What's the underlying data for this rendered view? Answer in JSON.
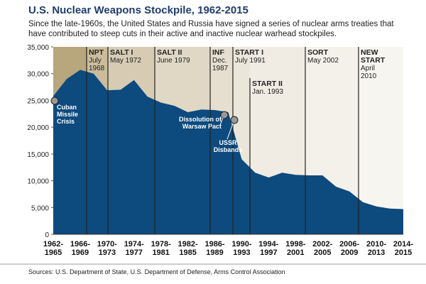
{
  "chart_data": {
    "type": "area",
    "title": "U.S. Nuclear Weapons Stockpile, 1962-2015",
    "subtitle": "Since the late-1960s, the United States and Russia have signed a series of nuclear arms treaties that have contributed to steep cuts in their active and inactive nuclear warhead stockpiles.",
    "categories": [
      "1962-1965",
      null,
      "1966-1969",
      null,
      "1970-1973",
      null,
      "1974-1977",
      null,
      "1978-1981",
      null,
      "1982-1985",
      null,
      "1986-1989",
      null,
      "1990-1993",
      null,
      "1994-1997",
      null,
      "1998-2001",
      null,
      "2002-2005",
      null,
      "2006-2009",
      null,
      "2010-2013",
      null,
      "2014-2015"
    ],
    "values": [
      25800,
      29000,
      30700,
      30000,
      26900,
      27000,
      28800,
      25700,
      24600,
      24000,
      22800,
      23300,
      23200,
      22800,
      14000,
      11500,
      10600,
      11500,
      11100,
      11000,
      11000,
      8900,
      8000,
      6000,
      5200,
      4800,
      4700
    ],
    "color": "#0d4a7e",
    "ylim": [
      0,
      35000
    ],
    "yticks": [
      0,
      {
        "value": 5000,
        "label": "5,000"
      },
      {
        "value": 10000,
        "label": "10,000"
      },
      {
        "value": 15000,
        "label": "15,000"
      },
      {
        "value": 20000,
        "label": "20,000"
      },
      {
        "value": 25000,
        "label": "25,000"
      },
      {
        "value": 30000,
        "label": "30,000"
      },
      {
        "value": 35000,
        "label": "35,000"
      }
    ],
    "treaties": [
      {
        "name": "NPT",
        "date": "July 1968"
      },
      {
        "name": "SALT I",
        "date": "May 1972"
      },
      {
        "name": "SALT II",
        "date": "June 1979"
      },
      {
        "name": "INF",
        "date": "Dec. 1987"
      },
      {
        "name": "START I",
        "date": "July 1991"
      },
      {
        "name": "START II",
        "date": "Jan. 1993"
      },
      {
        "name": "SORT",
        "date": "May 2002"
      },
      {
        "name": "NEW START",
        "date": "April 2010"
      }
    ],
    "events": [
      "Cuban Missile Crisis",
      "Dissolution of Warsaw Pact",
      "USSR Disbands"
    ],
    "source": "Sources: U.S. Department of State, U.S. Department of Defense, Arms Control Association"
  }
}
